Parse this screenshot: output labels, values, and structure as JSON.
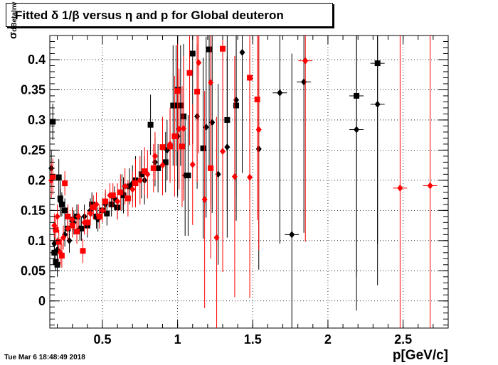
{
  "chart_data": {
    "type": "scatter",
    "title": "Fitted δ 1/β versus η and p for Global deuteron",
    "xlabel": "p[GeV/c]",
    "ylabel": "σ",
    "ylabel_sub": "dBetaInv",
    "xlim": [
      0.15,
      2.8
    ],
    "ylim": [
      -0.045,
      0.44
    ],
    "x_ticks": [
      0.5,
      1,
      1.5,
      2,
      2.5
    ],
    "x_tick_labels": [
      "0.5",
      "1",
      "1.5",
      "2",
      "2.5"
    ],
    "y_ticks": [
      0,
      0.05,
      0.1,
      0.15,
      0.2,
      0.25,
      0.3,
      0.35,
      0.4
    ],
    "y_tick_labels": [
      "0",
      "0.05",
      "0.1",
      "0.15",
      "0.2",
      "0.25",
      "0.3",
      "0.35",
      "0.4"
    ],
    "grid": true,
    "series": [
      {
        "color": "#000000",
        "marker": "square",
        "points": [
          [
            0.17,
            0.297,
            0.03
          ],
          [
            0.18,
            0.08,
            0.02
          ],
          [
            0.19,
            0.065,
            0.015
          ],
          [
            0.2,
            0.06,
            0.02
          ],
          [
            0.21,
            0.205,
            0.03
          ],
          [
            0.22,
            0.17,
            0.03
          ],
          [
            0.23,
            0.16,
            0.02
          ],
          [
            0.25,
            0.15,
            0.02
          ],
          [
            0.27,
            0.12,
            0.02
          ],
          [
            0.3,
            0.135,
            0.02
          ],
          [
            0.33,
            0.14,
            0.02
          ],
          [
            0.36,
            0.12,
            0.02
          ],
          [
            0.4,
            0.125,
            0.02
          ],
          [
            0.43,
            0.16,
            0.02
          ],
          [
            0.46,
            0.14,
            0.02
          ],
          [
            0.5,
            0.15,
            0.02
          ],
          [
            0.53,
            0.145,
            0.02
          ],
          [
            0.56,
            0.16,
            0.02
          ],
          [
            0.6,
            0.155,
            0.02
          ],
          [
            0.64,
            0.175,
            0.03
          ],
          [
            0.68,
            0.19,
            0.03
          ],
          [
            0.72,
            0.2,
            0.04
          ],
          [
            0.76,
            0.21,
            0.04
          ],
          [
            0.82,
            0.292,
            0.05
          ],
          [
            0.87,
            0.22,
            0.04
          ],
          [
            0.92,
            0.23,
            0.05
          ],
          [
            0.97,
            0.324,
            0.1
          ],
          [
            0.99,
            0.324,
            0.1
          ],
          [
            1.0,
            0.35,
            0.1
          ],
          [
            1.02,
            0.324,
            0.1
          ],
          [
            1.04,
            0.306,
            0.12
          ],
          [
            1.07,
            0.208,
            0.1
          ],
          [
            1.1,
            0.41,
            0.15
          ],
          [
            1.17,
            0.253,
            0.15
          ],
          [
            1.21,
            0.417,
            0.2
          ],
          [
            1.33,
            0.3,
            0.15
          ],
          [
            1.39,
            0.324,
            0.15
          ],
          [
            2.19,
            0.34,
            0.3
          ],
          [
            2.33,
            0.394,
            0.3
          ]
        ]
      },
      {
        "color": "#000000",
        "marker": "diamond",
        "points": [
          [
            0.16,
            0.22,
            0.03
          ],
          [
            0.18,
            0.095,
            0.02
          ],
          [
            0.2,
            0.085,
            0.02
          ],
          [
            0.22,
            0.165,
            0.02
          ],
          [
            0.25,
            0.11,
            0.02
          ],
          [
            0.28,
            0.1,
            0.02
          ],
          [
            0.31,
            0.13,
            0.02
          ],
          [
            0.35,
            0.12,
            0.02
          ],
          [
            0.38,
            0.14,
            0.02
          ],
          [
            0.42,
            0.15,
            0.02
          ],
          [
            0.47,
            0.135,
            0.02
          ],
          [
            0.52,
            0.16,
            0.02
          ],
          [
            0.58,
            0.17,
            0.02
          ],
          [
            0.63,
            0.18,
            0.03
          ],
          [
            0.7,
            0.195,
            0.03
          ],
          [
            0.78,
            0.2,
            0.04
          ],
          [
            0.85,
            0.23,
            0.04
          ],
          [
            0.93,
            0.25,
            0.05
          ],
          [
            1.0,
            0.273,
            0.1
          ],
          [
            1.05,
            0.208,
            0.1
          ],
          [
            1.13,
            0.306,
            0.12
          ],
          [
            1.19,
            0.288,
            0.15
          ],
          [
            1.23,
            0.296,
            0.15
          ],
          [
            1.27,
            0.21,
            0.15
          ],
          [
            1.33,
            0.255,
            0.15
          ],
          [
            1.39,
            0.333,
            0.2
          ],
          [
            1.43,
            0.412,
            0.2
          ],
          [
            1.54,
            0.252,
            0.2
          ],
          [
            1.68,
            0.345,
            0.25
          ],
          [
            1.76,
            0.11,
            0.3
          ],
          [
            1.84,
            0.363,
            0.25
          ],
          [
            2.19,
            0.284,
            0.3
          ],
          [
            2.33,
            0.326,
            0.3
          ]
        ]
      },
      {
        "color": "#ff0000",
        "marker": "square",
        "points": [
          [
            0.17,
            0.206,
            0.03
          ],
          [
            0.19,
            0.118,
            0.02
          ],
          [
            0.21,
            0.098,
            0.02
          ],
          [
            0.23,
            0.075,
            0.02
          ],
          [
            0.25,
            0.195,
            0.02
          ],
          [
            0.27,
            0.14,
            0.02
          ],
          [
            0.3,
            0.125,
            0.02
          ],
          [
            0.33,
            0.115,
            0.02
          ],
          [
            0.37,
            0.083,
            0.02
          ],
          [
            0.4,
            0.13,
            0.02
          ],
          [
            0.44,
            0.155,
            0.02
          ],
          [
            0.48,
            0.14,
            0.02
          ],
          [
            0.52,
            0.165,
            0.02
          ],
          [
            0.57,
            0.175,
            0.02
          ],
          [
            0.62,
            0.18,
            0.03
          ],
          [
            0.67,
            0.17,
            0.03
          ],
          [
            0.72,
            0.195,
            0.04
          ],
          [
            0.78,
            0.215,
            0.04
          ],
          [
            0.84,
            0.22,
            0.04
          ],
          [
            0.9,
            0.255,
            0.05
          ],
          [
            0.95,
            0.256,
            0.06
          ],
          [
            0.98,
            0.273,
            0.1
          ],
          [
            1.0,
            0.348,
            0.1
          ],
          [
            1.03,
            0.256,
            0.1
          ],
          [
            1.08,
            0.378,
            0.12
          ],
          [
            1.13,
            0.347,
            0.15
          ],
          [
            1.22,
            0.22,
            0.15
          ],
          [
            1.3,
            0.418,
            0.2
          ],
          [
            1.48,
            0.37,
            0.2
          ],
          [
            1.53,
            0.334,
            0.2
          ]
        ]
      },
      {
        "color": "#ff0000",
        "marker": "diamond",
        "points": [
          [
            0.16,
            0.2,
            0.03
          ],
          [
            0.18,
            0.125,
            0.02
          ],
          [
            0.2,
            0.14,
            0.02
          ],
          [
            0.22,
            0.08,
            0.02
          ],
          [
            0.24,
            0.105,
            0.02
          ],
          [
            0.27,
            0.12,
            0.02
          ],
          [
            0.3,
            0.135,
            0.02
          ],
          [
            0.34,
            0.14,
            0.02
          ],
          [
            0.38,
            0.13,
            0.02
          ],
          [
            0.42,
            0.145,
            0.02
          ],
          [
            0.46,
            0.16,
            0.02
          ],
          [
            0.5,
            0.15,
            0.02
          ],
          [
            0.55,
            0.175,
            0.02
          ],
          [
            0.6,
            0.165,
            0.03
          ],
          [
            0.65,
            0.19,
            0.03
          ],
          [
            0.7,
            0.185,
            0.03
          ],
          [
            0.75,
            0.2,
            0.04
          ],
          [
            0.8,
            0.21,
            0.04
          ],
          [
            0.85,
            0.24,
            0.04
          ],
          [
            0.9,
            0.225,
            0.05
          ],
          [
            0.95,
            0.26,
            0.06
          ],
          [
            1.01,
            0.285,
            0.1
          ],
          [
            1.04,
            0.286,
            0.12
          ],
          [
            1.1,
            0.226,
            0.1
          ],
          [
            1.14,
            0.395,
            0.15
          ],
          [
            1.18,
            0.168,
            0.18
          ],
          [
            1.22,
            0.362,
            0.2
          ],
          [
            1.26,
            0.105,
            0.2
          ],
          [
            1.3,
            0.248,
            0.2
          ],
          [
            1.38,
            0.206,
            0.2
          ],
          [
            1.48,
            0.205,
            0.2
          ],
          [
            1.54,
            0.284,
            0.2
          ],
          [
            1.85,
            0.398,
            0.3
          ],
          [
            2.48,
            0.187,
            0.35
          ],
          [
            2.68,
            0.191,
            0.35
          ]
        ]
      }
    ]
  },
  "footer": {
    "timestamp": "Tue Mar  6 18:48:49 2018"
  }
}
